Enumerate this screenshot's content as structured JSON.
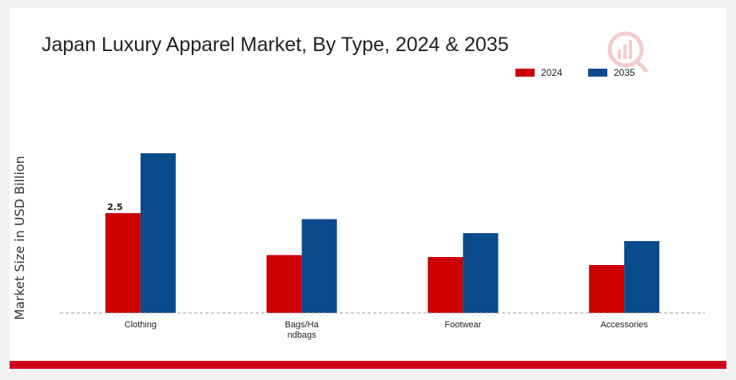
{
  "chart_data": {
    "type": "bar",
    "title": "Japan Luxury Apparel Market, By Type, 2024 & 2035",
    "xlabel": "",
    "ylabel": "Market Size in USD Billion",
    "categories": [
      [
        "Clothing"
      ],
      [
        "Bags/Ha",
        "ndbags"
      ],
      [
        "Footwear"
      ],
      [
        "Accessories"
      ]
    ],
    "series": [
      {
        "name": "2024",
        "color": "#cc0000",
        "values": [
          2.5,
          1.45,
          1.4,
          1.2
        ]
      },
      {
        "name": "2035",
        "color": "#0a4b8c",
        "values": [
          4.0,
          2.35,
          2.0,
          1.8
        ]
      }
    ],
    "data_labels": [
      {
        "series": 0,
        "index": 0,
        "text": "2.5"
      }
    ],
    "ylim": [
      0,
      6
    ],
    "grid": false,
    "legend_position": "top-right"
  },
  "colors": {
    "accent": "#d0021b",
    "baseline": "#999999"
  },
  "icons": {
    "logo": "market-research-logo-icon"
  }
}
